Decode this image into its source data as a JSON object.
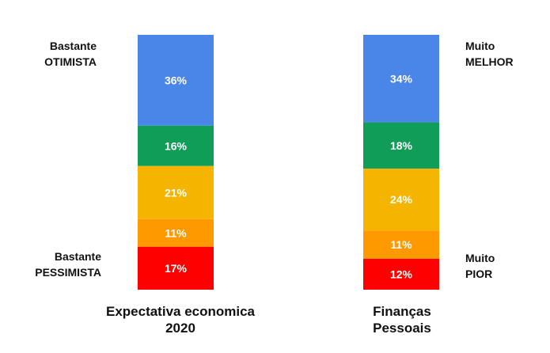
{
  "chart_data": {
    "type": "stacked-bar",
    "bars": [
      {
        "caption_line1": "Expectativa economica",
        "caption_line2": "2020",
        "top_label_line1": "Bastante",
        "top_label_line2": "OTIMISTA",
        "bottom_label_line1": "Bastante",
        "bottom_label_line2": "PESSIMISTA",
        "segments": [
          {
            "value": 36,
            "label": "36%",
            "color": "#4a86e8"
          },
          {
            "value": 16,
            "label": "16%",
            "color": "#0f9d58"
          },
          {
            "value": 21,
            "label": "21%",
            "color": "#f4b400"
          },
          {
            "value": 11,
            "label": "11%",
            "color": "#ff9900"
          },
          {
            "value": 17,
            "label": "17%",
            "color": "#ff0000"
          }
        ]
      },
      {
        "caption_line1": "Finanças",
        "caption_line2": "Pessoais",
        "top_label_line1": "Muito",
        "top_label_line2": "MELHOR",
        "bottom_label_line1": "Muito",
        "bottom_label_line2": "PIOR",
        "segments": [
          {
            "value": 34,
            "label": "34%",
            "color": "#4a86e8"
          },
          {
            "value": 18,
            "label": "18%",
            "color": "#0f9d58"
          },
          {
            "value": 24,
            "label": "24%",
            "color": "#f4b400"
          },
          {
            "value": 11,
            "label": "11%",
            "color": "#ff9900"
          },
          {
            "value": 12,
            "label": "12%",
            "color": "#ff0000"
          }
        ]
      }
    ]
  }
}
